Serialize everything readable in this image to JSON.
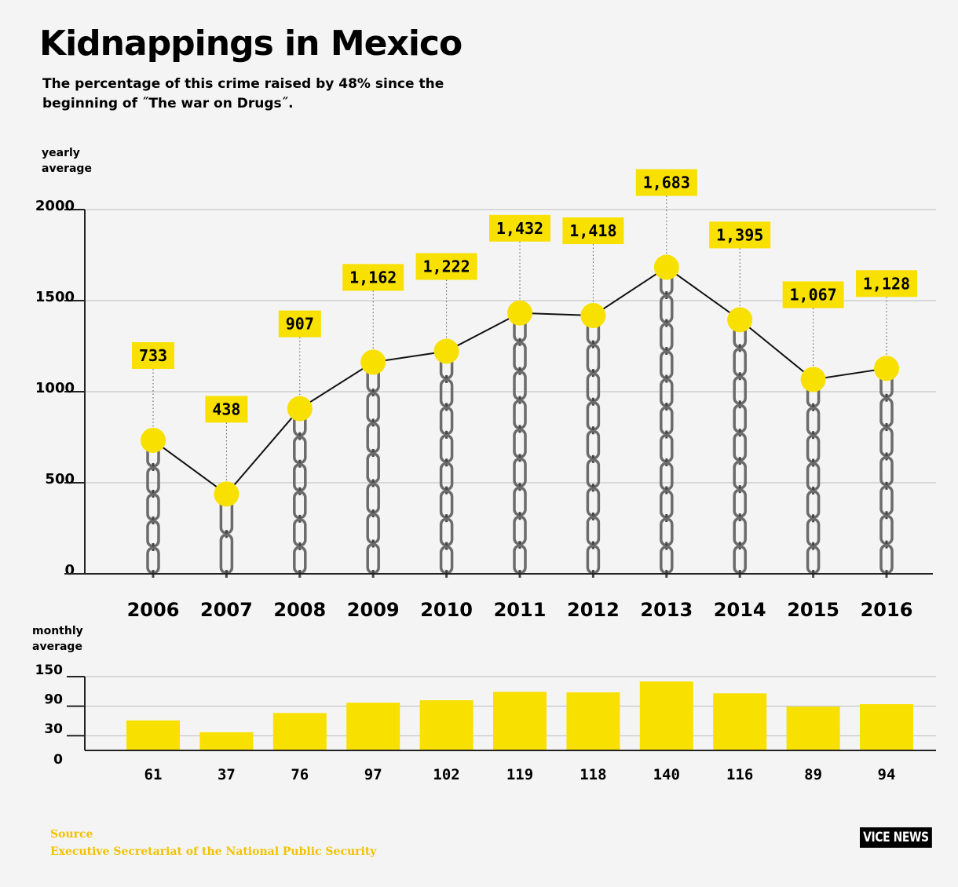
{
  "title": "Kidnappings in Mexico",
  "subtitle": "The percentage of this crime raised by 48% since the beginning of ˝The war on Drugs˝.",
  "source": {
    "label": "Source",
    "text": "Executive Secretariat of the National Public Security"
  },
  "logo": "VICE NEWS",
  "colors": {
    "accent": "#f8e000",
    "line": "#111111",
    "grid": "#bbbbbb",
    "source": "#f2c200"
  },
  "chart_data": [
    {
      "type": "line",
      "ylabel_lines": [
        "yearly",
        "average"
      ],
      "x": [
        "2006",
        "2007",
        "2008",
        "2009",
        "2010",
        "2011",
        "2012",
        "2013",
        "2014",
        "2015",
        "2016"
      ],
      "values": [
        733,
        438,
        907,
        1162,
        1222,
        1432,
        1418,
        1683,
        1395,
        1067,
        1128
      ],
      "data_labels": [
        "733",
        "438",
        "907",
        "1,162",
        "1,222",
        "1,432",
        "1,418",
        "1,683",
        "1,395",
        "1,067",
        "1,128"
      ],
      "yticks": [
        0,
        500,
        1000,
        1500,
        2000
      ],
      "ylim": [
        0,
        2000
      ],
      "grid": true,
      "marker": "circle"
    },
    {
      "type": "bar",
      "ylabel_lines": [
        "monthly",
        "average"
      ],
      "categories": [
        "2006",
        "2007",
        "2008",
        "2009",
        "2010",
        "2011",
        "2012",
        "2013",
        "2014",
        "2015",
        "2016"
      ],
      "values": [
        61,
        37,
        76,
        97,
        102,
        119,
        118,
        140,
        116,
        89,
        94
      ],
      "data_labels": [
        "61",
        "37",
        "76",
        "97",
        "102",
        "119",
        "118",
        "140",
        "116",
        "89",
        "94"
      ],
      "yticks": [
        0,
        30,
        90,
        150
      ],
      "ylim": [
        0,
        150
      ],
      "grid": true
    }
  ]
}
